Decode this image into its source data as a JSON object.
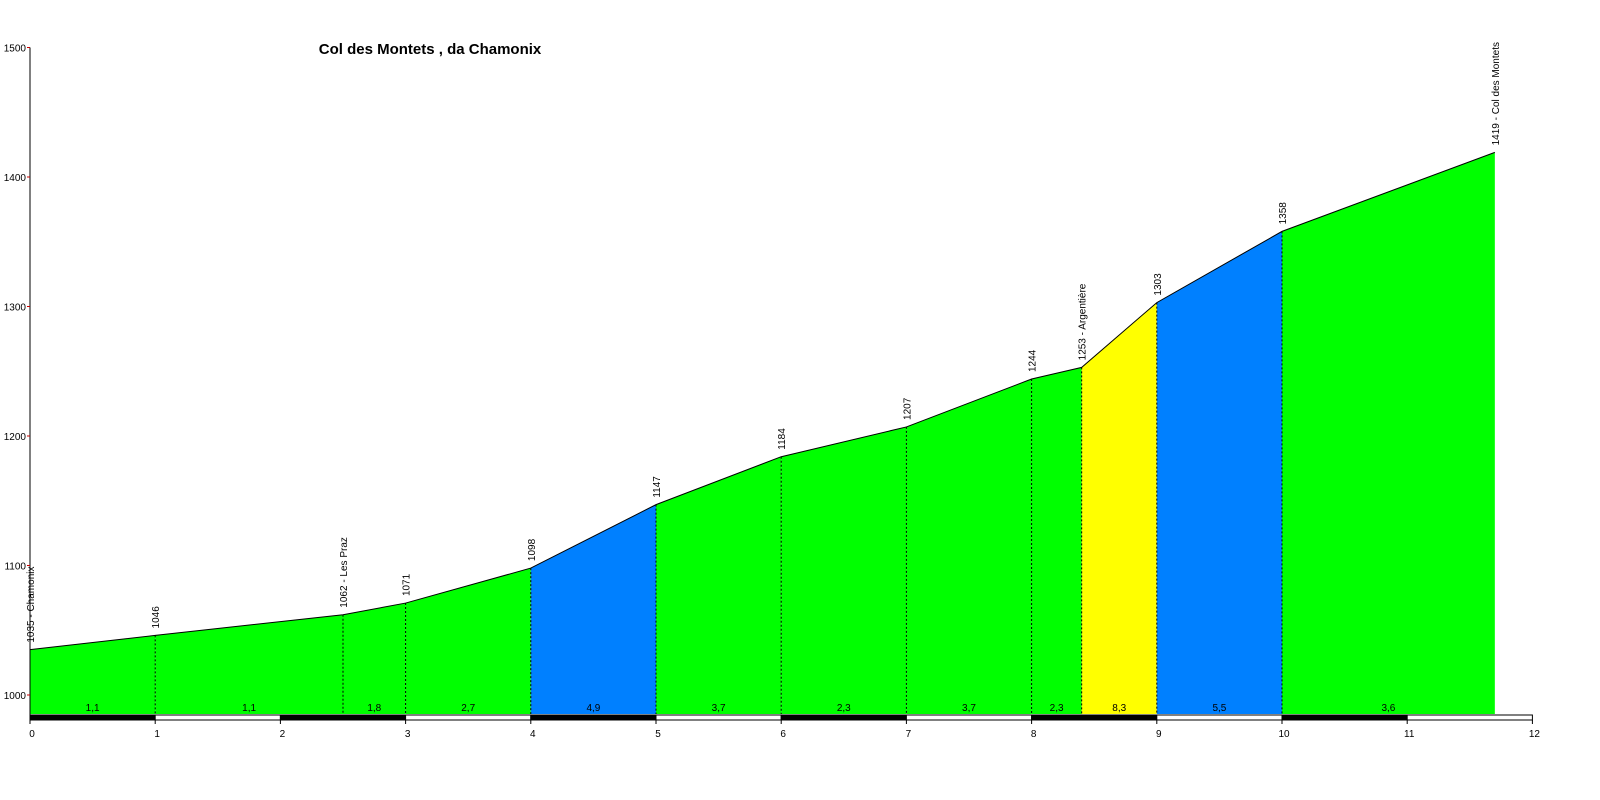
{
  "chart_data": {
    "type": "area",
    "title": "Col des Montets , da Chamonix",
    "xlabel": "",
    "ylabel": "",
    "xlim": [
      0,
      12
    ],
    "ylim": [
      1000,
      1500
    ],
    "y_axis_min_shown": 983,
    "x_ticks": [
      "0",
      "1",
      "2",
      "3",
      "4",
      "5",
      "6",
      "7",
      "8",
      "9",
      "10",
      "11",
      "12"
    ],
    "y_ticks": [
      "1000",
      "1100",
      "1200",
      "1300",
      "1400",
      "1500"
    ],
    "profile": [
      {
        "km": 0,
        "alt": 1035,
        "label": "1035 - Chamonix"
      },
      {
        "km": 1,
        "alt": 1046,
        "label": "1046"
      },
      {
        "km": 2.5,
        "alt": 1062,
        "label": "1062 - Les Praz"
      },
      {
        "km": 3,
        "alt": 1071,
        "label": "1071"
      },
      {
        "km": 4,
        "alt": 1098,
        "label": "1098"
      },
      {
        "km": 5,
        "alt": 1147,
        "label": "1147"
      },
      {
        "km": 6,
        "alt": 1184,
        "label": "1184"
      },
      {
        "km": 7,
        "alt": 1207,
        "label": "1207"
      },
      {
        "km": 8,
        "alt": 1244,
        "label": "1244"
      },
      {
        "km": 8.4,
        "alt": 1253,
        "label": "1253 - Argentière"
      },
      {
        "km": 9,
        "alt": 1303,
        "label": "1303"
      },
      {
        "km": 10,
        "alt": 1358,
        "label": "1358"
      },
      {
        "km": 11.7,
        "alt": 1419,
        "label": "1419 - Col des Montets"
      }
    ],
    "segments": [
      {
        "from": 0,
        "to": 1,
        "gradient": "1,1",
        "color": "#00ff00"
      },
      {
        "from": 1,
        "to": 2.5,
        "gradient": "1,1",
        "color": "#00ff00"
      },
      {
        "from": 2.5,
        "to": 3,
        "gradient": "1,8",
        "color": "#00ff00"
      },
      {
        "from": 3,
        "to": 4,
        "gradient": "2,7",
        "color": "#00ff00"
      },
      {
        "from": 4,
        "to": 5,
        "gradient": "4,9",
        "color": "#0080ff"
      },
      {
        "from": 5,
        "to": 6,
        "gradient": "3,7",
        "color": "#00ff00"
      },
      {
        "from": 6,
        "to": 7,
        "gradient": "2,3",
        "color": "#00ff00"
      },
      {
        "from": 7,
        "to": 8,
        "gradient": "3,7",
        "color": "#00ff00"
      },
      {
        "from": 8,
        "to": 8.4,
        "gradient": "2,3",
        "color": "#00ff00"
      },
      {
        "from": 8.4,
        "to": 9,
        "gradient": "8,3",
        "color": "#ffff00"
      },
      {
        "from": 9,
        "to": 10,
        "gradient": "5,5",
        "color": "#0080ff"
      },
      {
        "from": 10,
        "to": 11.7,
        "gradient": "3,6",
        "color": "#00ff00"
      }
    ],
    "colors": {
      "easy": "#00ff00",
      "moderate": "#0080ff",
      "steep": "#ffff00",
      "outline": "#000000",
      "y_tick_color": "#cc0000"
    },
    "grid": false
  }
}
